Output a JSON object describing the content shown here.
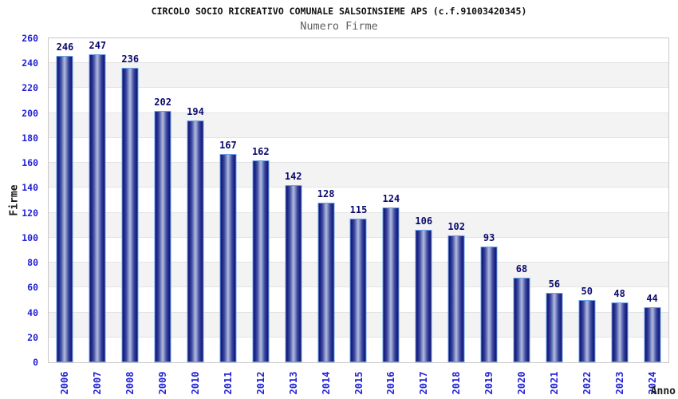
{
  "header": {
    "title": "CIRCOLO SOCIO RICREATIVO COMUNALE SALSOINSIEME APS (c.f.91003420345)",
    "subtitle": "Numero Firme"
  },
  "chart_data": {
    "type": "bar",
    "title": "CIRCOLO SOCIO RICREATIVO COMUNALE SALSOINSIEME APS (c.f.91003420345)",
    "subtitle": "Numero Firme",
    "xlabel": "Anno",
    "ylabel": "Firme",
    "categories": [
      "2006",
      "2007",
      "2008",
      "2009",
      "2010",
      "2011",
      "2012",
      "2013",
      "2014",
      "2015",
      "2016",
      "2017",
      "2018",
      "2019",
      "2020",
      "2021",
      "2022",
      "2023",
      "2024"
    ],
    "values": [
      246,
      247,
      236,
      202,
      194,
      167,
      162,
      142,
      128,
      115,
      124,
      106,
      102,
      93,
      68,
      56,
      50,
      48,
      44
    ],
    "ylim": [
      0,
      260
    ],
    "ytick_step": 20,
    "yticks": [
      0,
      20,
      40,
      60,
      80,
      100,
      120,
      140,
      160,
      180,
      200,
      220,
      240,
      260
    ],
    "grid": "horizontal-bands-alternating",
    "legend": "none",
    "bar_value_labels": true,
    "colors": {
      "bar_edge_dark": "#13176f",
      "bar_mid": "#3d4a9e",
      "bar_center_light": "#b4bcde",
      "bar_border": "#66a0e8",
      "axis_tick_label": "#2222d8",
      "value_label": "#0a0a6e",
      "band_gray": "#f3f3f3",
      "gridline": "#e3e3e3",
      "plot_border": "#c8c8c8",
      "title_color": "#111111",
      "subtitle_color": "#5f5f5f"
    }
  }
}
